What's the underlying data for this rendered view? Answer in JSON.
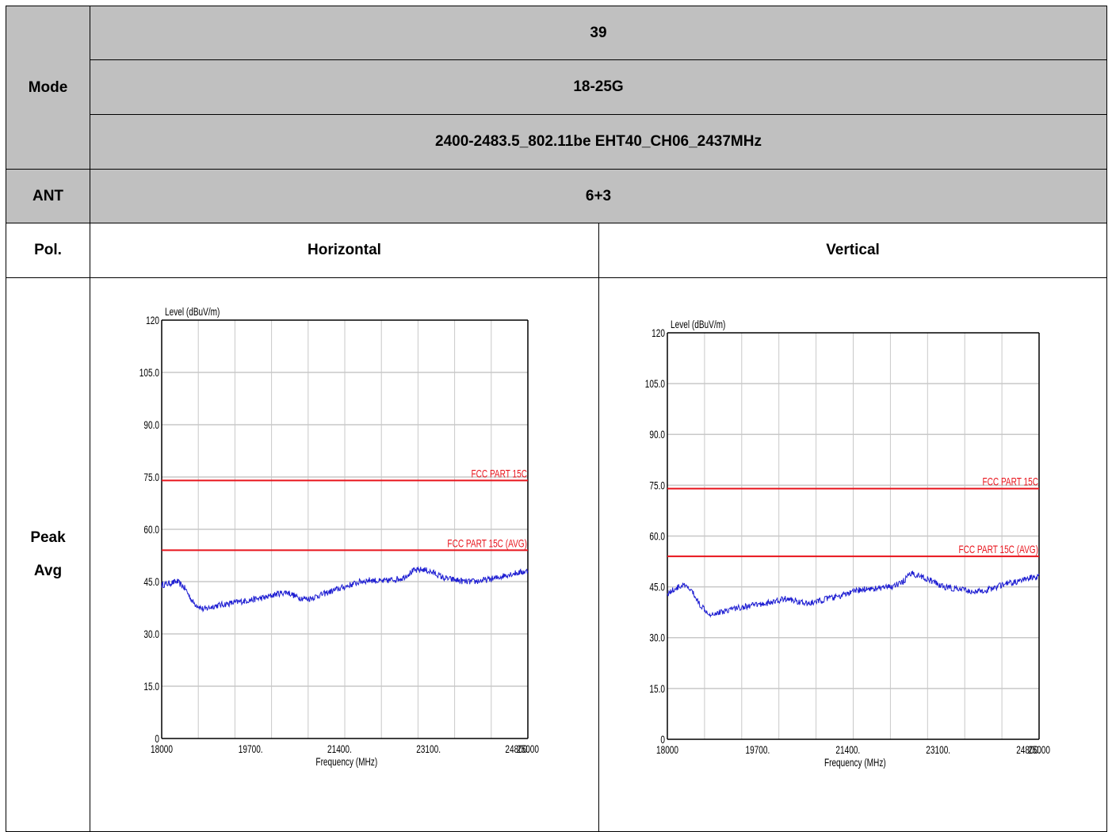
{
  "table": {
    "mode_label": "Mode",
    "ant_label": "ANT",
    "pol_label": "Pol.",
    "detector_lines": [
      "Peak",
      "Avg"
    ],
    "channel": "39",
    "band": "18-25G",
    "config": "2400-2483.5_802.11be EHT40_CH06_2437MHz",
    "ant": "6+3",
    "pol_h": "Horizontal",
    "pol_v": "Vertical"
  },
  "chart_data": [
    {
      "type": "line",
      "name": "horizontal",
      "ylabel": "Level (dBuV/m)",
      "xlabel": "Frequency (MHz)",
      "xlim": [
        18000,
        25000
      ],
      "ylim": [
        0,
        120
      ],
      "x_ticks": [
        "18000",
        "19700.",
        "21400.",
        "23100.",
        "24800.",
        "25000"
      ],
      "x_tick_values": [
        18000,
        19700,
        21400,
        23100,
        24800,
        25000
      ],
      "y_ticks": [
        "0",
        "15.0",
        "30.0",
        "45.0",
        "60.0",
        "75.0",
        "90.0",
        "105.0",
        "120"
      ],
      "y_tick_values": [
        0,
        15,
        30,
        45,
        60,
        75,
        90,
        105,
        120
      ],
      "limit_lines": [
        {
          "label": "FCC PART 15C",
          "value": 74,
          "color": "#e8141c"
        },
        {
          "label": "FCC PART 15C (AVG)",
          "value": 54,
          "color": "#e8141c"
        }
      ],
      "trace_color": "#1e1ed2",
      "series": [
        {
          "x": [
            18000,
            18150,
            18300,
            18450,
            18600,
            18800,
            19000,
            19200,
            19400,
            19600,
            19800,
            20000,
            20200,
            20400,
            20600,
            20800,
            21000,
            21200,
            21400,
            21600,
            21800,
            22000,
            22200,
            22400,
            22600,
            22800,
            23000,
            23200,
            23400,
            23600,
            23800,
            24000,
            24200,
            24400,
            24600,
            24800,
            25000
          ],
          "y": [
            44,
            44.5,
            45,
            43,
            39,
            37,
            38,
            38.5,
            39,
            39.5,
            40,
            40.5,
            41.5,
            42,
            40.5,
            40,
            41,
            42,
            43,
            44,
            45,
            45.5,
            45,
            45.5,
            46,
            48,
            48.5,
            47.5,
            46,
            45.5,
            45,
            45,
            45.5,
            46,
            47,
            47.5,
            48
          ]
        }
      ]
    },
    {
      "type": "line",
      "name": "vertical",
      "ylabel": "Level (dBuV/m)",
      "xlabel": "Frequency (MHz)",
      "xlim": [
        18000,
        25000
      ],
      "ylim": [
        0,
        120
      ],
      "x_ticks": [
        "18000",
        "19700.",
        "21400.",
        "23100.",
        "24800.",
        "25000"
      ],
      "x_tick_values": [
        18000,
        19700,
        21400,
        23100,
        24800,
        25000
      ],
      "y_ticks": [
        "0",
        "15.0",
        "30.0",
        "45.0",
        "60.0",
        "75.0",
        "90.0",
        "105.0",
        "120"
      ],
      "y_tick_values": [
        0,
        15,
        30,
        45,
        60,
        75,
        90,
        105,
        120
      ],
      "limit_lines": [
        {
          "label": "FCC PART 15C",
          "value": 74,
          "color": "#e8141c"
        },
        {
          "label": "FCC PART 15C (AVG)",
          "value": 54,
          "color": "#e8141c"
        }
      ],
      "trace_color": "#1e1ed2",
      "series": [
        {
          "x": [
            18000,
            18150,
            18300,
            18450,
            18600,
            18800,
            19000,
            19200,
            19400,
            19600,
            19800,
            20000,
            20200,
            20400,
            20600,
            20800,
            21000,
            21200,
            21400,
            21600,
            21800,
            22000,
            22200,
            22400,
            22600,
            22800,
            23000,
            23200,
            23400,
            23600,
            23800,
            24000,
            24200,
            24400,
            24600,
            24800,
            25000
          ],
          "y": [
            43,
            44.5,
            45.5,
            44,
            40,
            37,
            37.5,
            38.5,
            39,
            39.5,
            40,
            40.5,
            41.5,
            41,
            40,
            40.5,
            41.5,
            42,
            43,
            44,
            44.5,
            44.5,
            45,
            46,
            49,
            48,
            46.5,
            45,
            44.5,
            44,
            43.5,
            44,
            45,
            46,
            46.5,
            47.5,
            48
          ]
        }
      ]
    }
  ]
}
